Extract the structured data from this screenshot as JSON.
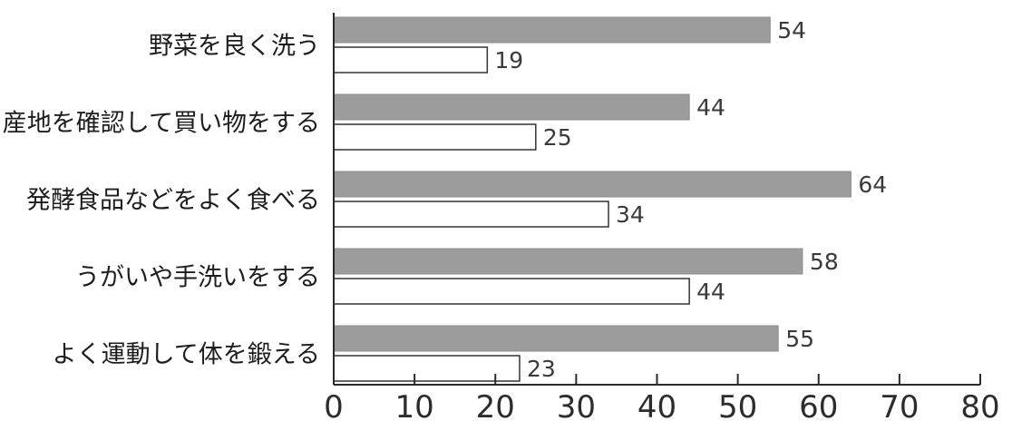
{
  "chart_data": {
    "type": "bar",
    "orientation": "horizontal",
    "title": "",
    "xlabel": "",
    "ylabel": "",
    "categories": [
      "野菜を良く洗う",
      "産地を確認して買い物をする",
      "発酵食品などをよく食べる",
      "うがいや手洗いをする",
      "よく運動して体を鍛える"
    ],
    "series": [
      {
        "color": "#9c9c9c",
        "values": [
          54,
          44,
          64,
          58,
          55
        ]
      },
      {
        "color": "#ffffff",
        "values": [
          19,
          25,
          34,
          44,
          23
        ]
      }
    ],
    "xlim": [
      0,
      80
    ],
    "xticks": [
      "0",
      "10",
      "20",
      "30",
      "40",
      "50",
      "60",
      "70",
      "80"
    ],
    "grid": false,
    "legend": "none"
  }
}
